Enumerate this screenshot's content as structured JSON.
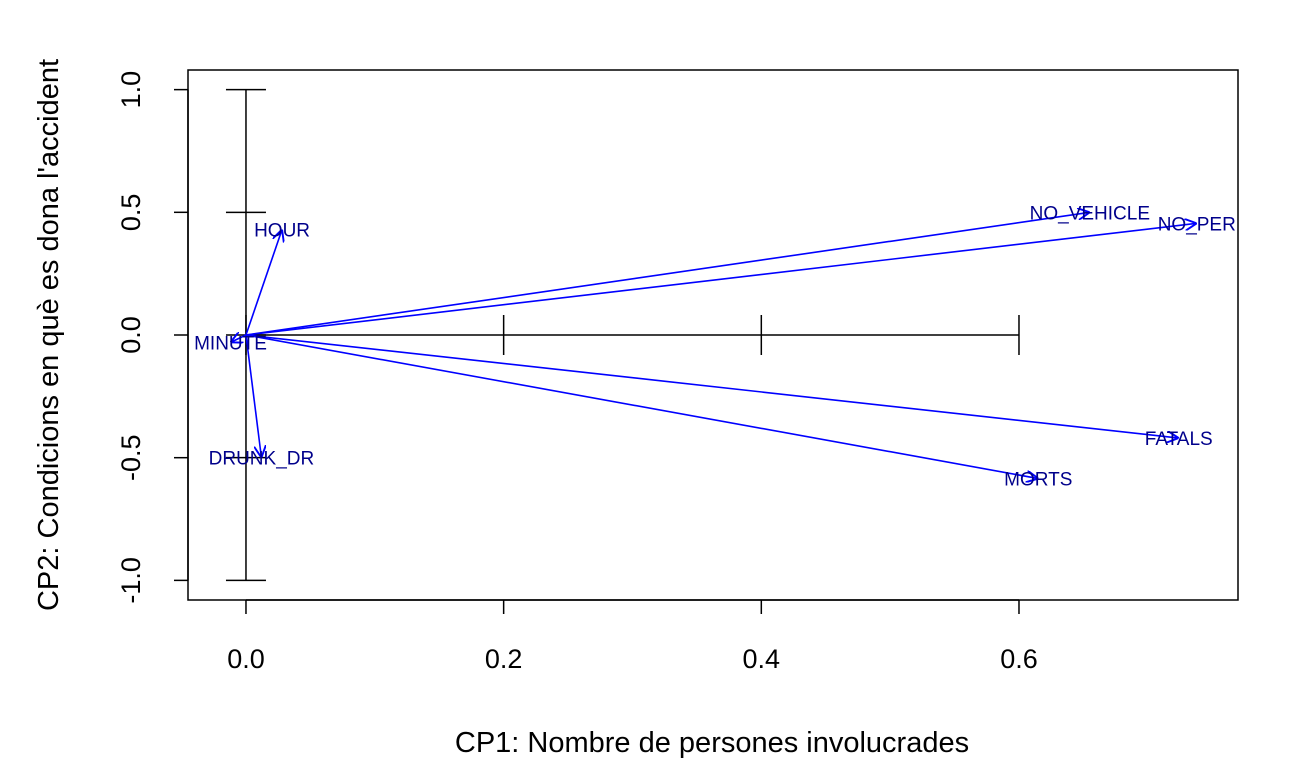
{
  "chart_data": {
    "type": "biplot",
    "xlabel": "CP1: Nombre de persones involucrades",
    "ylabel": "CP2: Condicions en què es dona l'accident",
    "xlim": [
      -0.045,
      0.77
    ],
    "ylim": [
      -1.08,
      1.08
    ],
    "x_ticks": [
      0.0,
      0.2,
      0.4,
      0.6
    ],
    "x_tick_labels": [
      "0.0",
      "0.2",
      "0.4",
      "0.6"
    ],
    "y_ticks": [
      -1.0,
      -0.5,
      0.0,
      0.5,
      1.0
    ],
    "y_tick_labels": [
      "-1.0",
      "-0.5",
      "0.0",
      "0.5",
      "1.0"
    ],
    "grid": false,
    "legend": "none",
    "inner_axes": {
      "horizontal": {
        "y": 0.0,
        "from": 0.0,
        "to": 0.6,
        "ticks": [
          0.0,
          0.2,
          0.4,
          0.6
        ]
      },
      "vertical": {
        "x": 0.0,
        "from": -1.0,
        "to": 1.0,
        "ticks": [
          -1.0,
          -0.5,
          0.0,
          0.5,
          1.0
        ]
      }
    },
    "arrows": [
      {
        "name": "HOUR",
        "x": 0.028,
        "y": 0.43
      },
      {
        "name": "MINUTE",
        "x": -0.012,
        "y": -0.03
      },
      {
        "name": "DRUNK_DR",
        "x": 0.012,
        "y": -0.5
      },
      {
        "name": "NO_VEHICLE",
        "x": 0.655,
        "y": 0.5
      },
      {
        "name": "NO_PER",
        "x": 0.738,
        "y": 0.455
      },
      {
        "name": "FATALS",
        "x": 0.724,
        "y": -0.42
      },
      {
        "name": "MORTS",
        "x": 0.615,
        "y": -0.585
      }
    ],
    "arrow_color": "#0000FF",
    "label_color": "#00008B"
  }
}
